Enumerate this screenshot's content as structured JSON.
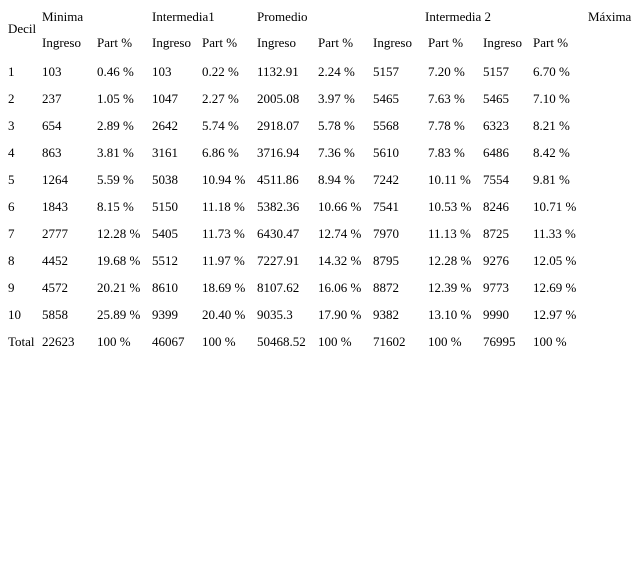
{
  "page": {
    "background_color": "#ffffff",
    "text_color": "#000000"
  },
  "table": {
    "corner_label": "Decil",
    "group_headers": [
      "Minima",
      "Intermedia1",
      "Promedio",
      "Intermedia 2",
      "Máxima"
    ],
    "column_headers": [
      "Ingreso",
      "Part %",
      "Ingreso",
      "Part %",
      "Ingreso",
      "Part %",
      "Ingreso",
      "Part %",
      "Ingreso",
      "Part %"
    ],
    "rows": [
      {
        "decil": "1",
        "cells": [
          "103",
          "0.46 %",
          "103",
          "0.22 %",
          "1132.91",
          "2.24 %",
          "5157",
          "7.20 %",
          "5157",
          "6.70 %"
        ]
      },
      {
        "decil": "2",
        "cells": [
          "237",
          "1.05 %",
          "1047",
          "2.27 %",
          "2005.08",
          "3.97 %",
          "5465",
          "7.63 %",
          "5465",
          "7.10 %"
        ]
      },
      {
        "decil": "3",
        "cells": [
          "654",
          "2.89 %",
          "2642",
          "5.74 %",
          "2918.07",
          "5.78 %",
          "5568",
          "7.78 %",
          "6323",
          "8.21 %"
        ]
      },
      {
        "decil": "4",
        "cells": [
          "863",
          "3.81 %",
          "3161",
          "6.86 %",
          "3716.94",
          "7.36 %",
          "5610",
          "7.83 %",
          "6486",
          "8.42 %"
        ]
      },
      {
        "decil": "5",
        "cells": [
          "1264",
          "5.59 %",
          "5038",
          "10.94 %",
          "4511.86",
          "8.94 %",
          "7242",
          "10.11 %",
          "7554",
          "9.81 %"
        ]
      },
      {
        "decil": "6",
        "cells": [
          "1843",
          "8.15 %",
          "5150",
          "11.18 %",
          "5382.36",
          "10.66 %",
          "7541",
          "10.53 %",
          "8246",
          "10.71 %"
        ]
      },
      {
        "decil": "7",
        "cells": [
          "2777",
          "12.28 %",
          "5405",
          "11.73 %",
          "6430.47",
          "12.74 %",
          "7970",
          "11.13 %",
          "8725",
          "11.33 %"
        ]
      },
      {
        "decil": "8",
        "cells": [
          "4452",
          "19.68 %",
          "5512",
          "11.97 %",
          "7227.91",
          "14.32 %",
          "8795",
          "12.28 %",
          "9276",
          "12.05 %"
        ]
      },
      {
        "decil": "9",
        "cells": [
          "4572",
          "20.21 %",
          "8610",
          "18.69 %",
          "8107.62",
          "16.06 %",
          "8872",
          "12.39 %",
          "9773",
          "12.69 %"
        ]
      },
      {
        "decil": "10",
        "cells": [
          "5858",
          "25.89 %",
          "9399",
          "20.40 %",
          "9035.3",
          "17.90 %",
          "9382",
          "13.10 %",
          "9990",
          "12.97 %"
        ]
      },
      {
        "decil": "Total",
        "cells": [
          "22623",
          "100 %",
          "46067",
          "100 %",
          "50468.52",
          "100 %",
          "71602",
          "100 %",
          "76995",
          "100 %"
        ]
      }
    ]
  }
}
